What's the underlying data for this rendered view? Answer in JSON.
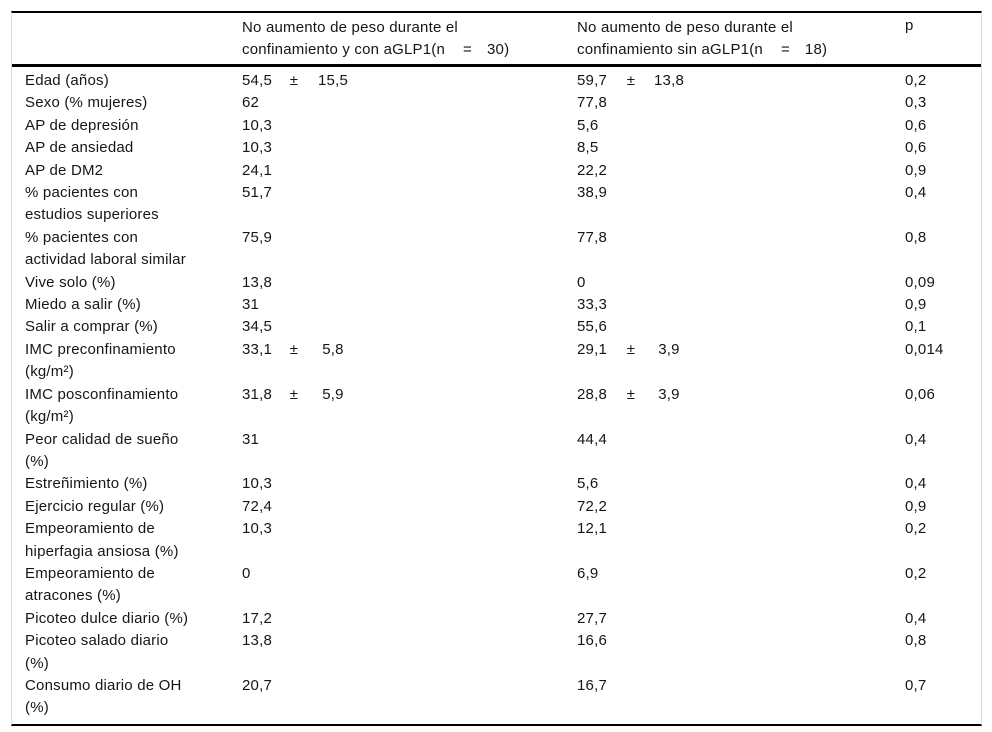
{
  "table": {
    "header": {
      "col1": "",
      "col2": {
        "line1": "No aumento de peso durante el",
        "line2": "confinamiento y con aGLP1(n",
        "eq": "=",
        "n": "30)"
      },
      "col3": {
        "line1": "No aumento de peso durante el",
        "line2": "confinamiento sin aGLP1(n",
        "eq": "=",
        "n": "18)"
      },
      "col4": "p"
    },
    "rows": [
      {
        "label": "Edad (años)",
        "g1_value": "54,5",
        "g1_pm": "±",
        "g1_sd": "15,5",
        "g2_value": "59,7",
        "g2_pm": "±",
        "g2_sd": "13,8",
        "p": "0,2"
      },
      {
        "label": "Sexo (% mujeres)",
        "g1_value": "62",
        "g1_pm": "",
        "g1_sd": "",
        "g2_value": "77,8",
        "g2_pm": "",
        "g2_sd": "",
        "p": "0,3"
      },
      {
        "label": "AP de depresión",
        "g1_value": "10,3",
        "g1_pm": "",
        "g1_sd": "",
        "g2_value": "5,6",
        "g2_pm": "",
        "g2_sd": "",
        "p": "0,6"
      },
      {
        "label": "AP de ansiedad",
        "g1_value": "10,3",
        "g1_pm": "",
        "g1_sd": "",
        "g2_value": "8,5",
        "g2_pm": "",
        "g2_sd": "",
        "p": "0,6"
      },
      {
        "label": "AP de DM2",
        "g1_value": "24,1",
        "g1_pm": "",
        "g1_sd": "",
        "g2_value": "22,2",
        "g2_pm": "",
        "g2_sd": "",
        "p": "0,9"
      },
      {
        "label": "% pacientes con\nestudios superiores",
        "g1_value": "51,7",
        "g1_pm": "",
        "g1_sd": "",
        "g2_value": "38,9",
        "g2_pm": "",
        "g2_sd": "",
        "p": "0,4"
      },
      {
        "label": "% pacientes con\nactividad laboral similar",
        "g1_value": "75,9",
        "g1_pm": "",
        "g1_sd": "",
        "g2_value": "77,8",
        "g2_pm": "",
        "g2_sd": "",
        "p": "0,8"
      },
      {
        "label": "Vive solo (%)",
        "g1_value": "13,8",
        "g1_pm": "",
        "g1_sd": "",
        "g2_value": "0",
        "g2_pm": "",
        "g2_sd": "",
        "p": "0,09"
      },
      {
        "label": "Miedo a salir (%)",
        "g1_value": "31",
        "g1_pm": "",
        "g1_sd": "",
        "g2_value": "33,3",
        "g2_pm": "",
        "g2_sd": "",
        "p": "0,9"
      },
      {
        "label": "Salir a comprar (%)",
        "g1_value": "34,5",
        "g1_pm": "",
        "g1_sd": "",
        "g2_value": "55,6",
        "g2_pm": "",
        "g2_sd": "",
        "p": "0,1"
      },
      {
        "label": "IMC preconfinamiento\n(kg/m²)",
        "g1_value": "33,1",
        "g1_pm": "±",
        "g1_sd": "5,8",
        "g2_value": "29,1",
        "g2_pm": "±",
        "g2_sd": "3,9",
        "p": "0,014"
      },
      {
        "label": "IMC posconfinamiento\n(kg/m²)",
        "g1_value": "31,8",
        "g1_pm": "±",
        "g1_sd": "5,9",
        "g2_value": "28,8",
        "g2_pm": "±",
        "g2_sd": "3,9",
        "p": "0,06"
      },
      {
        "label": "Peor calidad de sueño\n(%)",
        "g1_value": "31",
        "g1_pm": "",
        "g1_sd": "",
        "g2_value": "44,4",
        "g2_pm": "",
        "g2_sd": "",
        "p": "0,4"
      },
      {
        "label": "Estreñimiento (%)",
        "g1_value": "10,3",
        "g1_pm": "",
        "g1_sd": "",
        "g2_value": "5,6",
        "g2_pm": "",
        "g2_sd": "",
        "p": "0,4"
      },
      {
        "label": "Ejercicio regular (%)",
        "g1_value": "72,4",
        "g1_pm": "",
        "g1_sd": "",
        "g2_value": "72,2",
        "g2_pm": "",
        "g2_sd": "",
        "p": "0,9"
      },
      {
        "label": "Empeoramiento de\nhiperfagia ansiosa (%)",
        "g1_value": "10,3",
        "g1_pm": "",
        "g1_sd": "",
        "g2_value": "12,1",
        "g2_pm": "",
        "g2_sd": "",
        "p": "0,2"
      },
      {
        "label": "Empeoramiento de\natracones (%)",
        "g1_value": "0",
        "g1_pm": "",
        "g1_sd": "",
        "g2_value": "6,9",
        "g2_pm": "",
        "g2_sd": "",
        "p": "0,2"
      },
      {
        "label": "Picoteo dulce diario (%)",
        "g1_value": "17,2",
        "g1_pm": "",
        "g1_sd": "",
        "g2_value": "27,7",
        "g2_pm": "",
        "g2_sd": "",
        "p": "0,4"
      },
      {
        "label": "Picoteo salado diario\n(%)",
        "g1_value": "13,8",
        "g1_pm": "",
        "g1_sd": "",
        "g2_value": "16,6",
        "g2_pm": "",
        "g2_sd": "",
        "p": "0,8"
      },
      {
        "label": "Consumo diario de OH\n(%)",
        "g1_value": "20,7",
        "g1_pm": "",
        "g1_sd": "",
        "g2_value": "16,7",
        "g2_pm": "",
        "g2_sd": "",
        "p": "0,7"
      }
    ]
  }
}
